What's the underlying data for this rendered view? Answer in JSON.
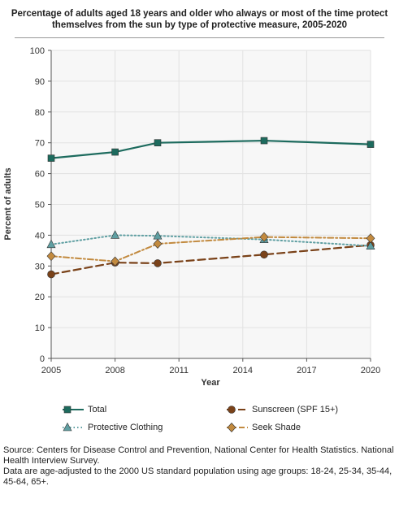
{
  "chart_data": {
    "type": "line",
    "title": "Percentage of adults aged 18 years and older who always or most of the time protect themselves from the sun by type of protective measure, 2005-2020",
    "xlabel": "Year",
    "ylabel": "Percent of adults",
    "x": [
      2005,
      2008,
      2010,
      2015,
      2020
    ],
    "xticks": [
      2005,
      2008,
      2011,
      2014,
      2017,
      2020
    ],
    "xlim": [
      2005,
      2020
    ],
    "ylim": [
      0,
      100
    ],
    "yticks": [
      0,
      10,
      20,
      30,
      40,
      50,
      60,
      70,
      80,
      90,
      100
    ],
    "grid": true,
    "legend_position": "bottom",
    "series": [
      {
        "name": "Total",
        "values": [
          65,
          67,
          70,
          70.7,
          69.5
        ],
        "color": "#1d6b5e",
        "marker": "square",
        "style": "solid"
      },
      {
        "name": "Sunscreen (SPF 15+)",
        "values": [
          27.3,
          31.1,
          30.9,
          33.7,
          36.8
        ],
        "color": "#7a4219",
        "marker": "circle",
        "style": "dashed"
      },
      {
        "name": "Protective Clothing",
        "values": [
          37,
          40,
          39.8,
          38.6,
          36.5
        ],
        "color": "#5f9fa2",
        "marker": "triangle",
        "style": "dotted"
      },
      {
        "name": "Seek Shade",
        "values": [
          33.2,
          31.5,
          37.2,
          39.4,
          39
        ],
        "color": "#c28a3f",
        "marker": "diamond",
        "style": "dashdot"
      }
    ]
  },
  "notes": {
    "source": "Source: Centers for Disease Control and Prevention, National Center for Health Statistics. National Health Interview Survey.",
    "footnote": "Data are age-adjusted to the 2000 US standard population using age groups: 18-24, 25-34, 35-44, 45-64, 65+."
  }
}
